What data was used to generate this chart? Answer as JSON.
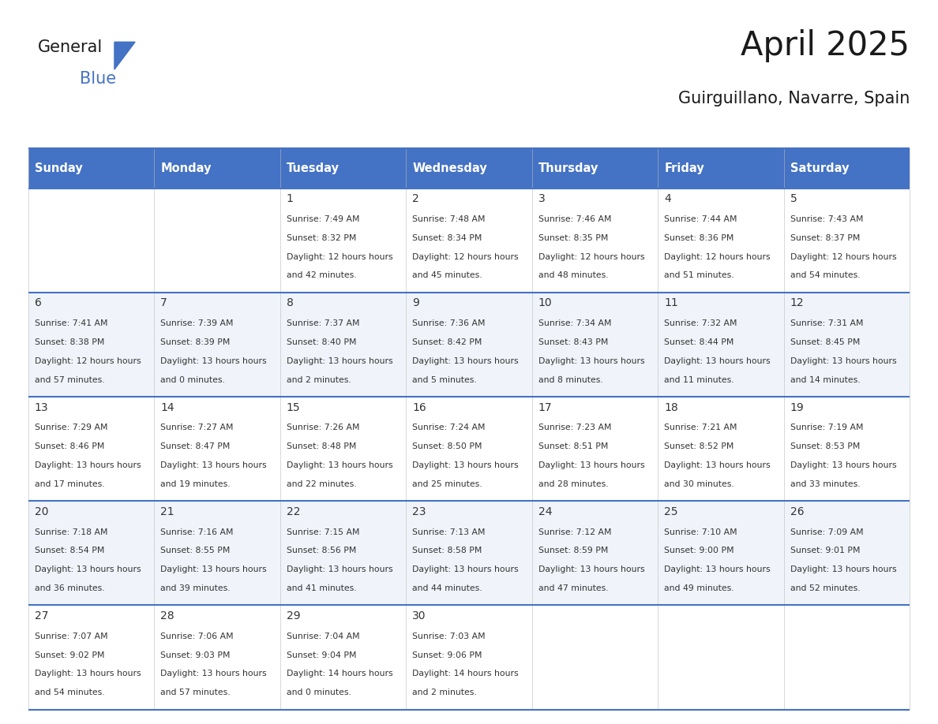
{
  "title": "April 2025",
  "subtitle": "Guirguillano, Navarre, Spain",
  "header_bg_color": "#4472C4",
  "header_text_color": "#FFFFFF",
  "day_headers": [
    "Sunday",
    "Monday",
    "Tuesday",
    "Wednesday",
    "Thursday",
    "Friday",
    "Saturday"
  ],
  "row_bg_even": "#FFFFFF",
  "row_bg_odd": "#F0F4FA",
  "cell_border_color": "#4472C4",
  "title_color": "#1a1a1a",
  "subtitle_color": "#1a1a1a",
  "cell_text_color": "#333333",
  "days": [
    {
      "row": 0,
      "col": 0,
      "num": "",
      "sunrise": "",
      "sunset": "",
      "daylight": ""
    },
    {
      "row": 0,
      "col": 1,
      "num": "",
      "sunrise": "",
      "sunset": "",
      "daylight": ""
    },
    {
      "row": 0,
      "col": 2,
      "num": "1",
      "sunrise": "7:49 AM",
      "sunset": "8:32 PM",
      "daylight": "12 hours and 42 minutes."
    },
    {
      "row": 0,
      "col": 3,
      "num": "2",
      "sunrise": "7:48 AM",
      "sunset": "8:34 PM",
      "daylight": "12 hours and 45 minutes."
    },
    {
      "row": 0,
      "col": 4,
      "num": "3",
      "sunrise": "7:46 AM",
      "sunset": "8:35 PM",
      "daylight": "12 hours and 48 minutes."
    },
    {
      "row": 0,
      "col": 5,
      "num": "4",
      "sunrise": "7:44 AM",
      "sunset": "8:36 PM",
      "daylight": "12 hours and 51 minutes."
    },
    {
      "row": 0,
      "col": 6,
      "num": "5",
      "sunrise": "7:43 AM",
      "sunset": "8:37 PM",
      "daylight": "12 hours and 54 minutes."
    },
    {
      "row": 1,
      "col": 0,
      "num": "6",
      "sunrise": "7:41 AM",
      "sunset": "8:38 PM",
      "daylight": "12 hours and 57 minutes."
    },
    {
      "row": 1,
      "col": 1,
      "num": "7",
      "sunrise": "7:39 AM",
      "sunset": "8:39 PM",
      "daylight": "13 hours and 0 minutes."
    },
    {
      "row": 1,
      "col": 2,
      "num": "8",
      "sunrise": "7:37 AM",
      "sunset": "8:40 PM",
      "daylight": "13 hours and 2 minutes."
    },
    {
      "row": 1,
      "col": 3,
      "num": "9",
      "sunrise": "7:36 AM",
      "sunset": "8:42 PM",
      "daylight": "13 hours and 5 minutes."
    },
    {
      "row": 1,
      "col": 4,
      "num": "10",
      "sunrise": "7:34 AM",
      "sunset": "8:43 PM",
      "daylight": "13 hours and 8 minutes."
    },
    {
      "row": 1,
      "col": 5,
      "num": "11",
      "sunrise": "7:32 AM",
      "sunset": "8:44 PM",
      "daylight": "13 hours and 11 minutes."
    },
    {
      "row": 1,
      "col": 6,
      "num": "12",
      "sunrise": "7:31 AM",
      "sunset": "8:45 PM",
      "daylight": "13 hours and 14 minutes."
    },
    {
      "row": 2,
      "col": 0,
      "num": "13",
      "sunrise": "7:29 AM",
      "sunset": "8:46 PM",
      "daylight": "13 hours and 17 minutes."
    },
    {
      "row": 2,
      "col": 1,
      "num": "14",
      "sunrise": "7:27 AM",
      "sunset": "8:47 PM",
      "daylight": "13 hours and 19 minutes."
    },
    {
      "row": 2,
      "col": 2,
      "num": "15",
      "sunrise": "7:26 AM",
      "sunset": "8:48 PM",
      "daylight": "13 hours and 22 minutes."
    },
    {
      "row": 2,
      "col": 3,
      "num": "16",
      "sunrise": "7:24 AM",
      "sunset": "8:50 PM",
      "daylight": "13 hours and 25 minutes."
    },
    {
      "row": 2,
      "col": 4,
      "num": "17",
      "sunrise": "7:23 AM",
      "sunset": "8:51 PM",
      "daylight": "13 hours and 28 minutes."
    },
    {
      "row": 2,
      "col": 5,
      "num": "18",
      "sunrise": "7:21 AM",
      "sunset": "8:52 PM",
      "daylight": "13 hours and 30 minutes."
    },
    {
      "row": 2,
      "col": 6,
      "num": "19",
      "sunrise": "7:19 AM",
      "sunset": "8:53 PM",
      "daylight": "13 hours and 33 minutes."
    },
    {
      "row": 3,
      "col": 0,
      "num": "20",
      "sunrise": "7:18 AM",
      "sunset": "8:54 PM",
      "daylight": "13 hours and 36 minutes."
    },
    {
      "row": 3,
      "col": 1,
      "num": "21",
      "sunrise": "7:16 AM",
      "sunset": "8:55 PM",
      "daylight": "13 hours and 39 minutes."
    },
    {
      "row": 3,
      "col": 2,
      "num": "22",
      "sunrise": "7:15 AM",
      "sunset": "8:56 PM",
      "daylight": "13 hours and 41 minutes."
    },
    {
      "row": 3,
      "col": 3,
      "num": "23",
      "sunrise": "7:13 AM",
      "sunset": "8:58 PM",
      "daylight": "13 hours and 44 minutes."
    },
    {
      "row": 3,
      "col": 4,
      "num": "24",
      "sunrise": "7:12 AM",
      "sunset": "8:59 PM",
      "daylight": "13 hours and 47 minutes."
    },
    {
      "row": 3,
      "col": 5,
      "num": "25",
      "sunrise": "7:10 AM",
      "sunset": "9:00 PM",
      "daylight": "13 hours and 49 minutes."
    },
    {
      "row": 3,
      "col": 6,
      "num": "26",
      "sunrise": "7:09 AM",
      "sunset": "9:01 PM",
      "daylight": "13 hours and 52 minutes."
    },
    {
      "row": 4,
      "col": 0,
      "num": "27",
      "sunrise": "7:07 AM",
      "sunset": "9:02 PM",
      "daylight": "13 hours and 54 minutes."
    },
    {
      "row": 4,
      "col": 1,
      "num": "28",
      "sunrise": "7:06 AM",
      "sunset": "9:03 PM",
      "daylight": "13 hours and 57 minutes."
    },
    {
      "row": 4,
      "col": 2,
      "num": "29",
      "sunrise": "7:04 AM",
      "sunset": "9:04 PM",
      "daylight": "14 hours and 0 minutes."
    },
    {
      "row": 4,
      "col": 3,
      "num": "30",
      "sunrise": "7:03 AM",
      "sunset": "9:06 PM",
      "daylight": "14 hours and 2 minutes."
    },
    {
      "row": 4,
      "col": 4,
      "num": "",
      "sunrise": "",
      "sunset": "",
      "daylight": ""
    },
    {
      "row": 4,
      "col": 5,
      "num": "",
      "sunrise": "",
      "sunset": "",
      "daylight": ""
    },
    {
      "row": 4,
      "col": 6,
      "num": "",
      "sunrise": "",
      "sunset": "",
      "daylight": ""
    }
  ],
  "num_rows": 5,
  "num_cols": 7,
  "logo_general_color": "#1a1a1a",
  "logo_blue_color": "#4472C4"
}
